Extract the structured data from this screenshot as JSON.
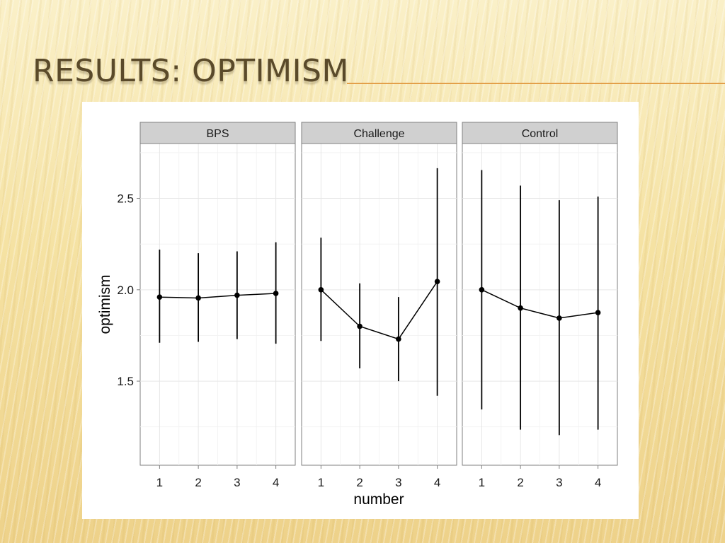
{
  "slide": {
    "title": "RESULTS: OPTIMISM"
  },
  "chart_data": {
    "type": "line",
    "facet_labels": [
      "BPS",
      "Challenge",
      "Control"
    ],
    "xlabel": "number",
    "ylabel": "optimism",
    "x_ticks": [
      1,
      2,
      3,
      4
    ],
    "y_ticks": [
      1.5,
      2.0,
      2.5
    ],
    "y_tick_labels": [
      "1.5",
      "2.0",
      "2.5"
    ],
    "xlim": [
      0.5,
      4.5
    ],
    "ylim": [
      1.04,
      2.8
    ],
    "grid": true,
    "error_bars": true,
    "facets": [
      {
        "label": "BPS",
        "x": [
          1,
          2,
          3,
          4
        ],
        "y": [
          1.96,
          1.955,
          1.97,
          1.98
        ],
        "lower": [
          1.71,
          1.715,
          1.73,
          1.705
        ],
        "upper": [
          2.22,
          2.2,
          2.21,
          2.26
        ]
      },
      {
        "label": "Challenge",
        "x": [
          1,
          2,
          3,
          4
        ],
        "y": [
          2.0,
          1.8,
          1.73,
          2.045
        ],
        "lower": [
          1.72,
          1.57,
          1.5,
          1.42
        ],
        "upper": [
          2.285,
          2.035,
          1.96,
          2.665
        ]
      },
      {
        "label": "Control",
        "x": [
          1,
          2,
          3,
          4
        ],
        "y": [
          2.0,
          1.9,
          1.845,
          1.875
        ],
        "lower": [
          1.345,
          1.235,
          1.205,
          1.235
        ],
        "upper": [
          2.655,
          2.57,
          2.49,
          2.51
        ]
      }
    ]
  }
}
